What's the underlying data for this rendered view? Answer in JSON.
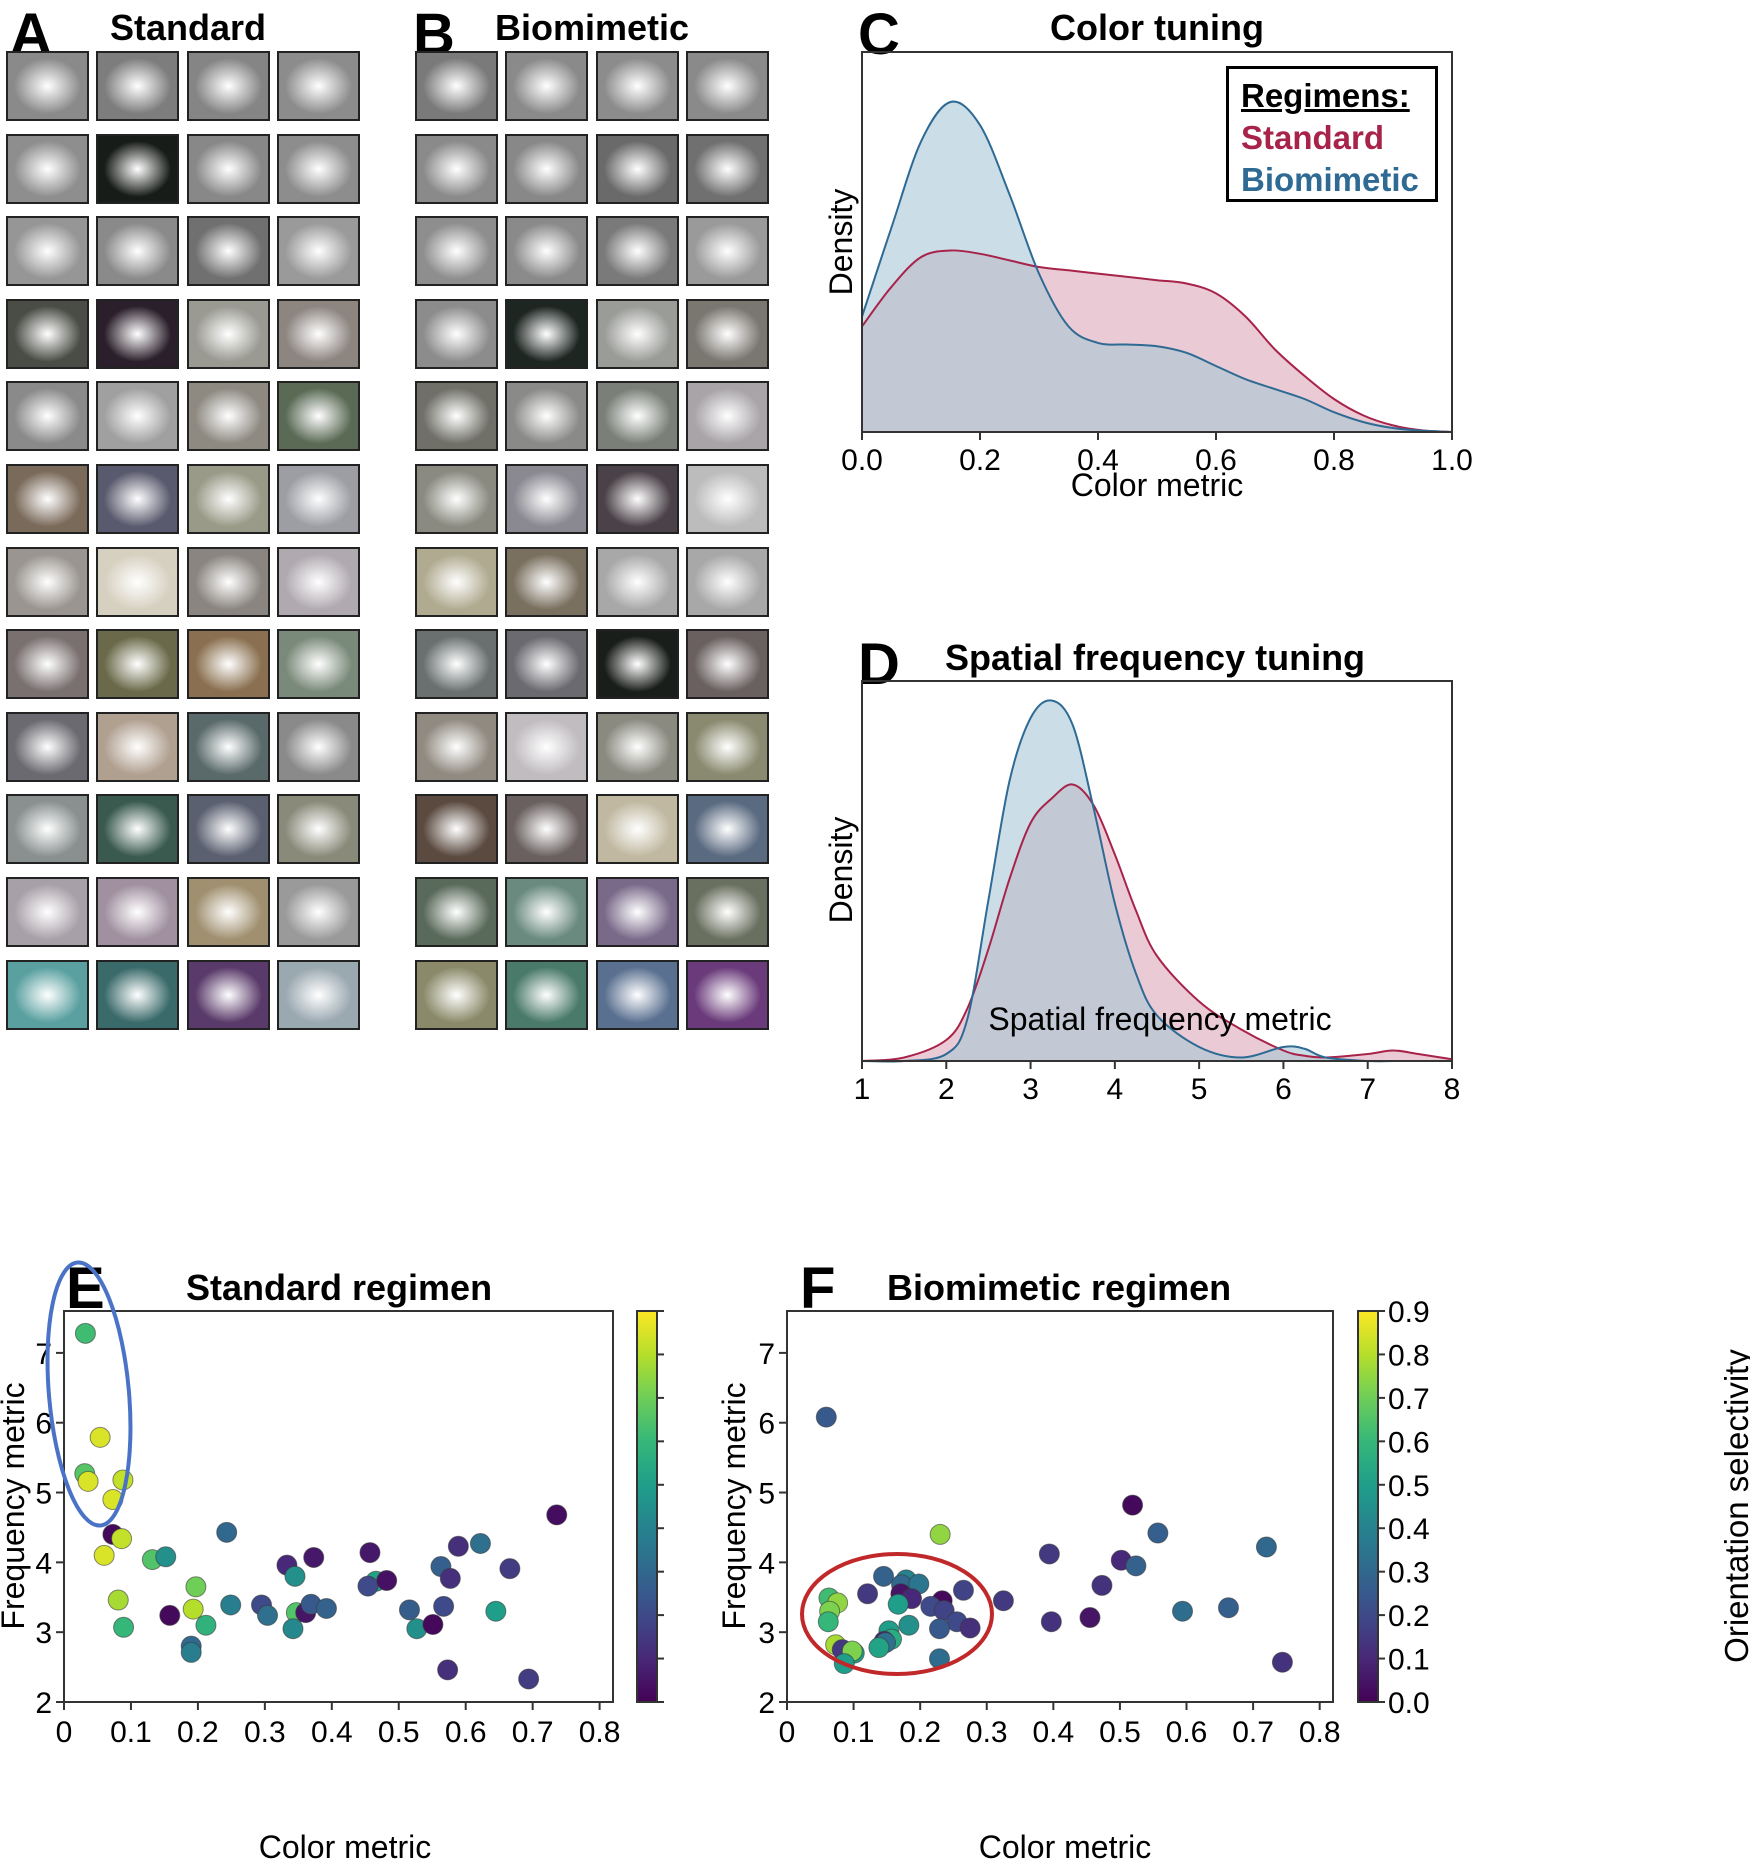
{
  "panels": {
    "A": {
      "letter": "A",
      "title": "Standard",
      "rows": 12,
      "cols": 4
    },
    "B": {
      "letter": "B",
      "title": "Biomimetic",
      "rows": 12,
      "cols": 4
    },
    "C": {
      "letter": "C",
      "title": "Color tuning"
    },
    "D": {
      "letter": "D",
      "title": "Spatial frequency tuning"
    },
    "E": {
      "letter": "E",
      "title": "Standard regimen"
    },
    "F": {
      "letter": "F",
      "title": "Biomimetic regimen"
    }
  },
  "legend": {
    "title": "Regimens:",
    "items": [
      {
        "label": "Standard",
        "color": "#a8234a"
      },
      {
        "label": "Biomimetic",
        "color": "#2e6a94"
      }
    ]
  },
  "colors": {
    "standard_line": "#a8234a",
    "standard_fill": "#dca7b8",
    "biomimetic_line": "#2e6a94",
    "biomimetic_fill": "#a9c6d6",
    "overlap_fill": "#ab9fb8",
    "ellipse_E": "#4a73c8",
    "ellipse_F": "#c0282a"
  },
  "chart_data": [
    {
      "id": "C",
      "type": "area",
      "title": "Color tuning",
      "xlabel": "Color metric",
      "ylabel": "Density",
      "xlim": [
        0.0,
        1.0
      ],
      "xticks": [
        "0.0",
        "0.2",
        "0.4",
        "0.6",
        "0.8",
        "1.0"
      ],
      "ylim": [
        0,
        1
      ],
      "grid": false,
      "legend_position": "top-right",
      "x": [
        0.0,
        0.05,
        0.1,
        0.15,
        0.2,
        0.25,
        0.3,
        0.35,
        0.4,
        0.45,
        0.5,
        0.55,
        0.6,
        0.65,
        0.7,
        0.75,
        0.8,
        0.85,
        0.9,
        0.95,
        1.0
      ],
      "series": [
        {
          "name": "Standard",
          "values": [
            0.32,
            0.44,
            0.53,
            0.55,
            0.54,
            0.52,
            0.5,
            0.49,
            0.48,
            0.47,
            0.46,
            0.45,
            0.42,
            0.35,
            0.25,
            0.17,
            0.1,
            0.05,
            0.02,
            0.005,
            0.0
          ]
        },
        {
          "name": "Biomimetic",
          "values": [
            0.35,
            0.62,
            0.88,
            1.0,
            0.93,
            0.72,
            0.48,
            0.32,
            0.27,
            0.265,
            0.26,
            0.24,
            0.2,
            0.16,
            0.13,
            0.1,
            0.06,
            0.03,
            0.012,
            0.004,
            0.0
          ]
        }
      ]
    },
    {
      "id": "D",
      "type": "area",
      "title": "Spatial frequency tuning",
      "xlabel": "Spatial frequency metric",
      "ylabel": "Density",
      "xlim": [
        1,
        8
      ],
      "xticks": [
        "1",
        "2",
        "3",
        "4",
        "5",
        "6",
        "7",
        "8"
      ],
      "ylim": [
        0,
        1
      ],
      "grid": false,
      "x": [
        1.0,
        1.5,
        2.0,
        2.25,
        2.5,
        2.75,
        3.0,
        3.25,
        3.5,
        3.75,
        4.0,
        4.25,
        4.5,
        5.0,
        5.5,
        6.0,
        6.25,
        6.5,
        7.0,
        7.3,
        7.6,
        8.0
      ],
      "series": [
        {
          "name": "Standard",
          "values": [
            0.0,
            0.01,
            0.06,
            0.15,
            0.32,
            0.52,
            0.68,
            0.75,
            0.79,
            0.73,
            0.59,
            0.43,
            0.3,
            0.17,
            0.09,
            0.03,
            0.015,
            0.01,
            0.02,
            0.03,
            0.02,
            0.005
          ]
        },
        {
          "name": "Biomimetic",
          "values": [
            0.0,
            0.0,
            0.02,
            0.12,
            0.46,
            0.8,
            0.98,
            1.03,
            0.96,
            0.72,
            0.45,
            0.25,
            0.13,
            0.04,
            0.01,
            0.04,
            0.035,
            0.01,
            0.0,
            0.0,
            0.0,
            0.0
          ]
        }
      ]
    },
    {
      "id": "E",
      "type": "scatter",
      "title": "Standard regimen",
      "xlabel": "Color metric",
      "ylabel": "Frequency metric",
      "xlim": [
        0,
        0.82
      ],
      "ylim": [
        2,
        7.6
      ],
      "xticks": [
        "0",
        "0.1",
        "0.2",
        "0.3",
        "0.4",
        "0.5",
        "0.6",
        "0.7",
        "0.8"
      ],
      "yticks": [
        "2",
        "3",
        "4",
        "5",
        "6",
        "7"
      ],
      "colorbar": {
        "label": "",
        "range": [
          0.0,
          0.9
        ],
        "ticks_labeled": false
      },
      "annotation": "ellipse around low color / high frequency cluster",
      "points": [
        {
          "x": 0.032,
          "y": 7.28,
          "c": 0.62
        },
        {
          "x": 0.054,
          "y": 5.79,
          "c": 0.85
        },
        {
          "x": 0.031,
          "y": 5.27,
          "c": 0.66
        },
        {
          "x": 0.036,
          "y": 5.16,
          "c": 0.85
        },
        {
          "x": 0.088,
          "y": 5.18,
          "c": 0.82
        },
        {
          "x": 0.073,
          "y": 4.9,
          "c": 0.85
        },
        {
          "x": 0.073,
          "y": 4.4,
          "c": 0.02
        },
        {
          "x": 0.086,
          "y": 4.34,
          "c": 0.82
        },
        {
          "x": 0.06,
          "y": 4.1,
          "c": 0.85
        },
        {
          "x": 0.132,
          "y": 4.04,
          "c": 0.65
        },
        {
          "x": 0.152,
          "y": 4.08,
          "c": 0.45
        },
        {
          "x": 0.081,
          "y": 3.46,
          "c": 0.78
        },
        {
          "x": 0.089,
          "y": 3.07,
          "c": 0.6
        },
        {
          "x": 0.158,
          "y": 3.24,
          "c": 0.02
        },
        {
          "x": 0.197,
          "y": 3.65,
          "c": 0.7
        },
        {
          "x": 0.193,
          "y": 3.33,
          "c": 0.8
        },
        {
          "x": 0.212,
          "y": 3.1,
          "c": 0.58
        },
        {
          "x": 0.19,
          "y": 2.8,
          "c": 0.3
        },
        {
          "x": 0.19,
          "y": 2.71,
          "c": 0.38
        },
        {
          "x": 0.243,
          "y": 4.43,
          "c": 0.3
        },
        {
          "x": 0.249,
          "y": 3.39,
          "c": 0.38
        },
        {
          "x": 0.295,
          "y": 3.39,
          "c": 0.2
        },
        {
          "x": 0.304,
          "y": 3.24,
          "c": 0.33
        },
        {
          "x": 0.333,
          "y": 3.96,
          "c": 0.1
        },
        {
          "x": 0.373,
          "y": 4.07,
          "c": 0.06
        },
        {
          "x": 0.345,
          "y": 3.8,
          "c": 0.45
        },
        {
          "x": 0.347,
          "y": 3.28,
          "c": 0.65
        },
        {
          "x": 0.361,
          "y": 3.28,
          "c": 0.05
        },
        {
          "x": 0.369,
          "y": 3.4,
          "c": 0.25
        },
        {
          "x": 0.342,
          "y": 3.05,
          "c": 0.42
        },
        {
          "x": 0.392,
          "y": 3.34,
          "c": 0.28
        },
        {
          "x": 0.457,
          "y": 4.14,
          "c": 0.06
        },
        {
          "x": 0.466,
          "y": 3.73,
          "c": 0.52
        },
        {
          "x": 0.454,
          "y": 3.66,
          "c": 0.2
        },
        {
          "x": 0.482,
          "y": 3.74,
          "c": 0.04
        },
        {
          "x": 0.516,
          "y": 3.32,
          "c": 0.26
        },
        {
          "x": 0.527,
          "y": 3.05,
          "c": 0.45
        },
        {
          "x": 0.551,
          "y": 3.11,
          "c": 0.02
        },
        {
          "x": 0.563,
          "y": 3.94,
          "c": 0.27
        },
        {
          "x": 0.577,
          "y": 3.77,
          "c": 0.12
        },
        {
          "x": 0.567,
          "y": 3.37,
          "c": 0.2
        },
        {
          "x": 0.573,
          "y": 2.46,
          "c": 0.12
        },
        {
          "x": 0.589,
          "y": 4.23,
          "c": 0.12
        },
        {
          "x": 0.622,
          "y": 4.27,
          "c": 0.33
        },
        {
          "x": 0.645,
          "y": 3.3,
          "c": 0.5
        },
        {
          "x": 0.666,
          "y": 3.91,
          "c": 0.16
        },
        {
          "x": 0.694,
          "y": 2.33,
          "c": 0.16
        },
        {
          "x": 0.736,
          "y": 4.68,
          "c": 0.03
        }
      ]
    },
    {
      "id": "F",
      "type": "scatter",
      "title": "Biomimetic regimen",
      "xlabel": "Color metric",
      "ylabel": "Frequency metric",
      "xlim": [
        0,
        0.82
      ],
      "ylim": [
        2,
        7.6
      ],
      "xticks": [
        "0",
        "0.1",
        "0.2",
        "0.3",
        "0.4",
        "0.5",
        "0.6",
        "0.7",
        "0.8"
      ],
      "yticks": [
        "2",
        "3",
        "4",
        "5",
        "6",
        "7"
      ],
      "colorbar": {
        "label": "Orientation selectivity",
        "range": [
          0.0,
          0.9
        ],
        "ticks": [
          "0.0",
          "0.1",
          "0.2",
          "0.3",
          "0.4",
          "0.5",
          "0.6",
          "0.7",
          "0.8",
          "0.9"
        ],
        "colormap": "viridis"
      },
      "annotation": "ellipse around low color / mid frequency cluster",
      "points": [
        {
          "x": 0.059,
          "y": 6.08,
          "c": 0.25
        },
        {
          "x": 0.23,
          "y": 4.4,
          "c": 0.75
        },
        {
          "x": 0.519,
          "y": 4.82,
          "c": 0.02
        },
        {
          "x": 0.557,
          "y": 4.42,
          "c": 0.27
        },
        {
          "x": 0.394,
          "y": 4.12,
          "c": 0.15
        },
        {
          "x": 0.502,
          "y": 4.03,
          "c": 0.1
        },
        {
          "x": 0.524,
          "y": 3.95,
          "c": 0.28
        },
        {
          "x": 0.72,
          "y": 4.22,
          "c": 0.3
        },
        {
          "x": 0.473,
          "y": 3.67,
          "c": 0.13
        },
        {
          "x": 0.455,
          "y": 3.21,
          "c": 0.05
        },
        {
          "x": 0.397,
          "y": 3.15,
          "c": 0.13
        },
        {
          "x": 0.594,
          "y": 3.3,
          "c": 0.32
        },
        {
          "x": 0.663,
          "y": 3.35,
          "c": 0.27
        },
        {
          "x": 0.744,
          "y": 2.57,
          "c": 0.13
        },
        {
          "x": 0.325,
          "y": 3.45,
          "c": 0.15
        },
        {
          "x": 0.145,
          "y": 3.8,
          "c": 0.28
        },
        {
          "x": 0.179,
          "y": 3.75,
          "c": 0.4
        },
        {
          "x": 0.172,
          "y": 3.68,
          "c": 0.3
        },
        {
          "x": 0.198,
          "y": 3.69,
          "c": 0.35
        },
        {
          "x": 0.121,
          "y": 3.55,
          "c": 0.15
        },
        {
          "x": 0.171,
          "y": 3.55,
          "c": 0.05
        },
        {
          "x": 0.187,
          "y": 3.48,
          "c": 0.1
        },
        {
          "x": 0.167,
          "y": 3.4,
          "c": 0.5
        },
        {
          "x": 0.265,
          "y": 3.6,
          "c": 0.18
        },
        {
          "x": 0.233,
          "y": 3.45,
          "c": 0.02
        },
        {
          "x": 0.216,
          "y": 3.37,
          "c": 0.2
        },
        {
          "x": 0.236,
          "y": 3.31,
          "c": 0.18
        },
        {
          "x": 0.255,
          "y": 3.15,
          "c": 0.2
        },
        {
          "x": 0.275,
          "y": 3.06,
          "c": 0.12
        },
        {
          "x": 0.229,
          "y": 3.05,
          "c": 0.25
        },
        {
          "x": 0.229,
          "y": 2.62,
          "c": 0.32
        },
        {
          "x": 0.183,
          "y": 3.1,
          "c": 0.45
        },
        {
          "x": 0.153,
          "y": 3.02,
          "c": 0.5
        },
        {
          "x": 0.157,
          "y": 2.9,
          "c": 0.55
        },
        {
          "x": 0.146,
          "y": 2.87,
          "c": 0.1
        },
        {
          "x": 0.148,
          "y": 2.85,
          "c": 0.33
        },
        {
          "x": 0.138,
          "y": 2.78,
          "c": 0.52
        },
        {
          "x": 0.063,
          "y": 3.49,
          "c": 0.62
        },
        {
          "x": 0.076,
          "y": 3.42,
          "c": 0.75
        },
        {
          "x": 0.064,
          "y": 3.3,
          "c": 0.72
        },
        {
          "x": 0.062,
          "y": 3.15,
          "c": 0.6
        },
        {
          "x": 0.073,
          "y": 2.82,
          "c": 0.78
        },
        {
          "x": 0.083,
          "y": 2.75,
          "c": 0.15
        },
        {
          "x": 0.101,
          "y": 2.7,
          "c": 0.5
        },
        {
          "x": 0.098,
          "y": 2.73,
          "c": 0.72
        },
        {
          "x": 0.086,
          "y": 2.55,
          "c": 0.5
        }
      ]
    }
  ],
  "filters": {
    "A": [
      [
        "#8a8a8a",
        "#7d7d7d",
        "#858585",
        "#8c8c8c"
      ],
      [
        "#8e8e8e",
        "#181c18",
        "#888888",
        "#8d8d8d"
      ],
      [
        "#969696",
        "#8a8a8a",
        "#707070",
        "#9a9a9a"
      ],
      [
        "#4a4d46",
        "#2a1f2a",
        "#9a9a92",
        "#8c8580"
      ],
      [
        "#8a8a8a",
        "#a0a0a0",
        "#8e8a82",
        "#5a6a55"
      ],
      [
        "#7a6a5a",
        "#5a5a6e",
        "#9a9a88",
        "#9c9ea4"
      ],
      [
        "#9a9590",
        "#d6d0c0",
        "#8a8580",
        "#b0aab0"
      ],
      [
        "#7a7070",
        "#6a6a4a",
        "#8a7050",
        "#7a8a7a"
      ],
      [
        "#6a6a70",
        "#b0a090",
        "#5a6a6a",
        "#8a8a8a"
      ],
      [
        "#8a9090",
        "#3a5a50",
        "#5a6070",
        "#8a8a7a"
      ],
      [
        "#a8a0a8",
        "#a090a0",
        "#a09070",
        "#9a9a9a"
      ],
      [
        "#5aa0a0",
        "#3a6a6a",
        "#5a3a6a",
        "#9aa8b0"
      ]
    ],
    "B": [
      [
        "#7a7a7a",
        "#8a8a8a",
        "#8c8c8c",
        "#8a8a8a"
      ],
      [
        "#8a8a8a",
        "#888888",
        "#6a6a6a",
        "#707070"
      ],
      [
        "#8e8e8e",
        "#8a8a8a",
        "#7a7a7a",
        "#9a9a9a"
      ],
      [
        "#8c8c8c",
        "#1e2622",
        "#9a9c98",
        "#7a7670"
      ],
      [
        "#707068",
        "#8a8a88",
        "#7a8078",
        "#a8a4a8"
      ],
      [
        "#8a8a80",
        "#8a8890",
        "#4a4248",
        "#bcbcbc"
      ],
      [
        "#b0aa90",
        "#7a7060",
        "#a8a8a8",
        "#a8a8a8"
      ],
      [
        "#6a7070",
        "#6a6a70",
        "#1a1e1a",
        "#6a6060"
      ],
      [
        "#908a80",
        "#c0bcc0",
        "#8a8a80",
        "#8a8a70"
      ],
      [
        "#5a4a40",
        "#6a6060",
        "#c0b8a0",
        "#5a6a80"
      ],
      [
        "#5a6a5a",
        "#6a8a80",
        "#7a6a8a",
        "#6a7060"
      ],
      [
        "#8a8a6a",
        "#4a7a6a",
        "#5a7090",
        "#6a3a7a"
      ]
    ]
  }
}
